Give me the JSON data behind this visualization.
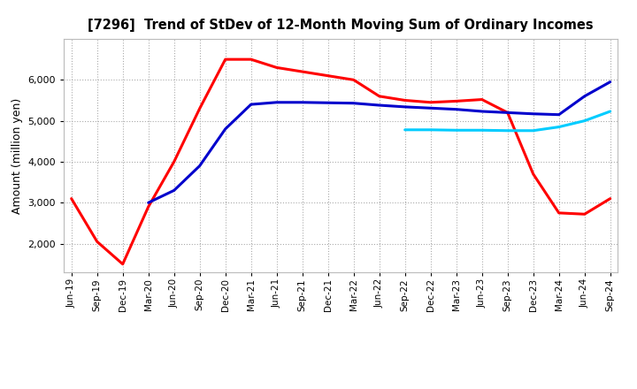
{
  "title": "[7296]  Trend of StDev of 12-Month Moving Sum of Ordinary Incomes",
  "ylabel": "Amount (million yen)",
  "background_color": "#ffffff",
  "grid_color": "#aaaaaa",
  "x_labels": [
    "Jun-19",
    "Sep-19",
    "Dec-19",
    "Mar-20",
    "Jun-20",
    "Sep-20",
    "Dec-20",
    "Mar-21",
    "Jun-21",
    "Sep-21",
    "Dec-21",
    "Mar-22",
    "Jun-22",
    "Sep-22",
    "Dec-22",
    "Mar-23",
    "Jun-23",
    "Sep-23",
    "Dec-23",
    "Mar-24",
    "Jun-24",
    "Sep-24"
  ],
  "ylim": [
    1300,
    7000
  ],
  "yticks": [
    2000,
    3000,
    4000,
    5000,
    6000
  ],
  "series": {
    "3 Years": {
      "color": "#ff0000",
      "linewidth": 2.2,
      "data": [
        3100,
        2050,
        1500,
        2900,
        4000,
        5300,
        6500,
        6500,
        6300,
        6200,
        6100,
        6000,
        5600,
        5500,
        5450,
        5480,
        5520,
        5200,
        3700,
        2750,
        2720,
        3100
      ]
    },
    "5 Years": {
      "color": "#0000cc",
      "linewidth": 2.2,
      "data": [
        null,
        null,
        null,
        3000,
        3300,
        3900,
        4800,
        5400,
        5450,
        5450,
        5440,
        5430,
        5380,
        5340,
        5310,
        5280,
        5230,
        5200,
        5170,
        5150,
        5600,
        5950
      ]
    },
    "7 Years": {
      "color": "#00ccff",
      "linewidth": 2.2,
      "data": [
        null,
        null,
        null,
        null,
        null,
        null,
        null,
        null,
        null,
        null,
        null,
        null,
        null,
        4780,
        4780,
        4770,
        4770,
        4760,
        4760,
        4850,
        5000,
        5230
      ]
    },
    "10 Years": {
      "color": "#008800",
      "linewidth": 2.2,
      "data": [
        null,
        null,
        null,
        null,
        null,
        null,
        null,
        null,
        null,
        null,
        null,
        null,
        null,
        null,
        null,
        null,
        null,
        null,
        null,
        null,
        null,
        null
      ]
    }
  }
}
